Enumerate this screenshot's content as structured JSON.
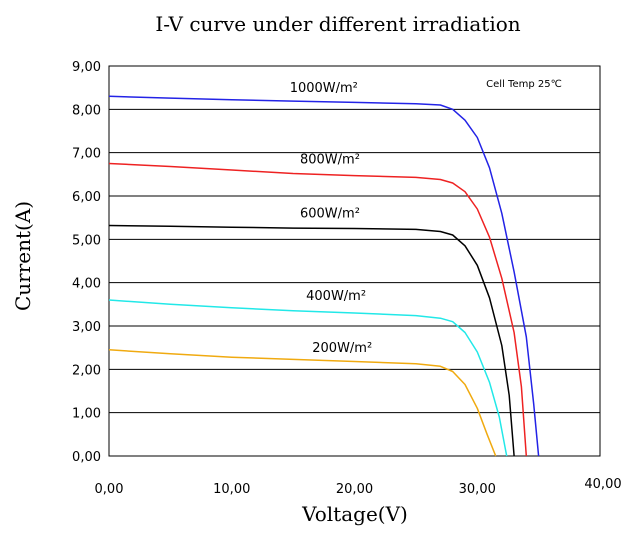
{
  "chart_data": {
    "type": "line",
    "title": "I-V curve under different irradiation",
    "xlabel": "Voltage(V)",
    "ylabel": "Current(A)",
    "xlim": [
      0,
      40
    ],
    "ylim": [
      0,
      9
    ],
    "x_ticks": [
      "0,00",
      "10,00",
      "20,00",
      "30,00",
      "40,00"
    ],
    "y_ticks": [
      "0,00",
      "1,00",
      "2,00",
      "3,00",
      "4,00",
      "5,00",
      "6,00",
      "7,00",
      "8,00",
      "9,00"
    ],
    "grid": "horizontal",
    "annotation": "Cell Temp 25℃",
    "series": [
      {
        "name": "1000W/m²",
        "color": "#2323e6",
        "points": [
          [
            0,
            8.3
          ],
          [
            5,
            8.26
          ],
          [
            10,
            8.22
          ],
          [
            15,
            8.19
          ],
          [
            20,
            8.16
          ],
          [
            25,
            8.13
          ],
          [
            27,
            8.1
          ],
          [
            28,
            8.0
          ],
          [
            29,
            7.75
          ],
          [
            30,
            7.35
          ],
          [
            31,
            6.65
          ],
          [
            32,
            5.6
          ],
          [
            33,
            4.25
          ],
          [
            34,
            2.75
          ],
          [
            34.6,
            1.2
          ],
          [
            35,
            0
          ]
        ]
      },
      {
        "name": "800W/m²",
        "color": "#ee2222",
        "points": [
          [
            0,
            6.75
          ],
          [
            5,
            6.68
          ],
          [
            10,
            6.6
          ],
          [
            15,
            6.52
          ],
          [
            20,
            6.47
          ],
          [
            25,
            6.43
          ],
          [
            27,
            6.38
          ],
          [
            28,
            6.3
          ],
          [
            29,
            6.1
          ],
          [
            30,
            5.7
          ],
          [
            31,
            5.05
          ],
          [
            32,
            4.1
          ],
          [
            33,
            2.85
          ],
          [
            33.6,
            1.6
          ],
          [
            34,
            0
          ]
        ]
      },
      {
        "name": "600W/m²",
        "color": "#000000",
        "points": [
          [
            0,
            5.32
          ],
          [
            5,
            5.3
          ],
          [
            10,
            5.28
          ],
          [
            15,
            5.26
          ],
          [
            20,
            5.25
          ],
          [
            25,
            5.23
          ],
          [
            27,
            5.18
          ],
          [
            28,
            5.1
          ],
          [
            29,
            4.85
          ],
          [
            30,
            4.4
          ],
          [
            31,
            3.65
          ],
          [
            32,
            2.55
          ],
          [
            32.6,
            1.4
          ],
          [
            33,
            0
          ]
        ]
      },
      {
        "name": "400W/m²",
        "color": "#22e8e8",
        "points": [
          [
            0,
            3.6
          ],
          [
            5,
            3.5
          ],
          [
            10,
            3.42
          ],
          [
            15,
            3.35
          ],
          [
            20,
            3.3
          ],
          [
            25,
            3.24
          ],
          [
            27,
            3.18
          ],
          [
            28,
            3.1
          ],
          [
            29,
            2.85
          ],
          [
            30,
            2.4
          ],
          [
            31,
            1.7
          ],
          [
            31.8,
            0.9
          ],
          [
            32.4,
            0
          ]
        ]
      },
      {
        "name": "200W/m²",
        "color": "#f0aa10",
        "points": [
          [
            0,
            2.45
          ],
          [
            5,
            2.36
          ],
          [
            10,
            2.28
          ],
          [
            15,
            2.23
          ],
          [
            20,
            2.18
          ],
          [
            25,
            2.13
          ],
          [
            27,
            2.07
          ],
          [
            28,
            1.95
          ],
          [
            29,
            1.65
          ],
          [
            30,
            1.1
          ],
          [
            30.8,
            0.5
          ],
          [
            31.5,
            0
          ]
        ]
      }
    ],
    "label_anchors": [
      {
        "series": 0,
        "x": 17.5,
        "y": 8.4
      },
      {
        "series": 1,
        "x": 18,
        "y": 6.75
      },
      {
        "series": 2,
        "x": 18,
        "y": 5.5
      },
      {
        "series": 3,
        "x": 18.5,
        "y": 3.6
      },
      {
        "series": 4,
        "x": 19,
        "y": 2.4
      }
    ]
  }
}
